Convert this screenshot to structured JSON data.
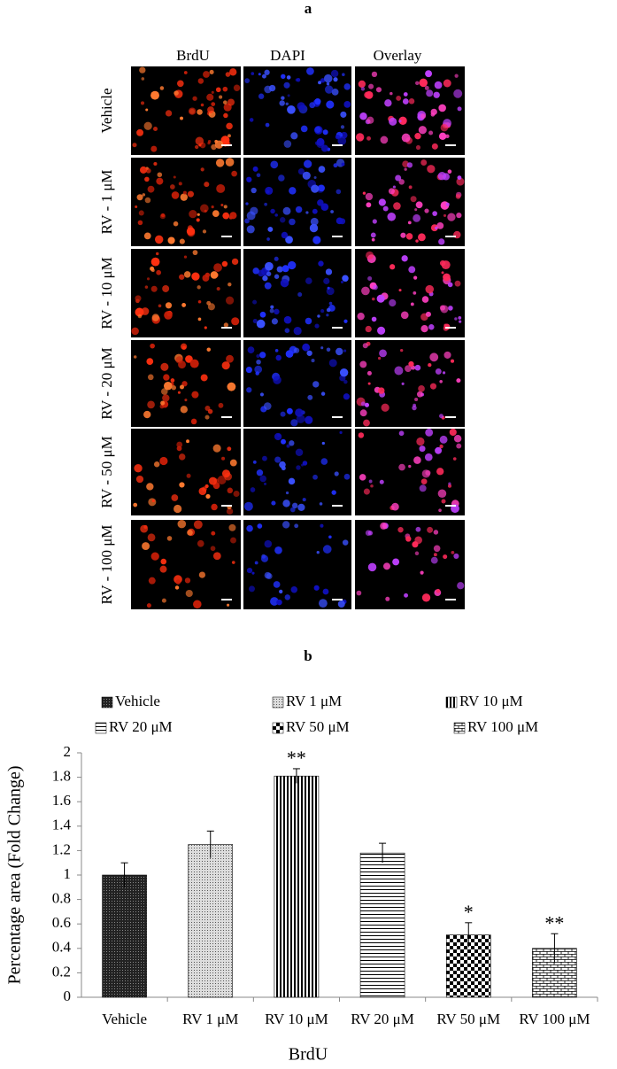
{
  "panel_a": {
    "label": "a",
    "columns": [
      "BrdU",
      "DAPI",
      "Overlay"
    ],
    "rows": [
      "Vehicle",
      "RV - 1 μM",
      "RV - 10 μM",
      "RV - 20 μM",
      "RV - 50 μM",
      "RV - 100 μM"
    ]
  },
  "chart_data": {
    "type": "bar",
    "label": "b",
    "categories": [
      "Vehicle",
      "RV 1 μM",
      "RV 10 μM",
      "RV 20 μM",
      "RV 50 μM",
      "RV 100 μM"
    ],
    "values": [
      1.0,
      1.25,
      1.81,
      1.18,
      0.51,
      0.4
    ],
    "errors": [
      0.1,
      0.11,
      0.06,
      0.08,
      0.1,
      0.12
    ],
    "significance": [
      null,
      null,
      "**",
      null,
      "*",
      "**"
    ],
    "patterns": [
      "dots",
      "fine-dots",
      "vertical",
      "horizontal",
      "checker",
      "brick"
    ],
    "ylim": [
      0,
      2
    ],
    "yticks": [
      0,
      0.2,
      0.4,
      0.6,
      0.8,
      1,
      1.2,
      1.4,
      1.6,
      1.8,
      2
    ],
    "ylabel": "Percentage area (Fold Change)",
    "xlabel": "BrdU"
  }
}
